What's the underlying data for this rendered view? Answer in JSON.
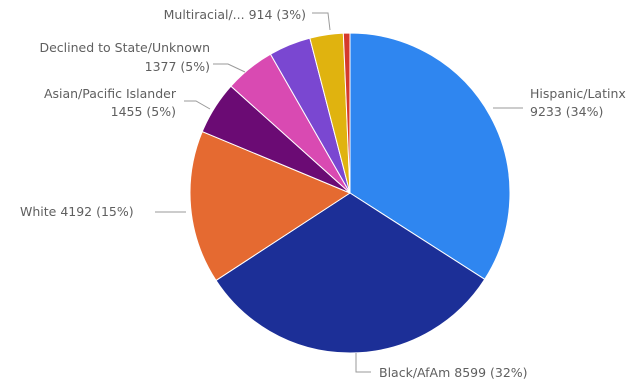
{
  "chart_data": {
    "type": "pie",
    "start_angle_deg": 0,
    "direction": "clockwise",
    "legend": "none",
    "slices": [
      {
        "name": "Hispanic/Latinx",
        "value": 9233,
        "percent_label": "34%",
        "color": "#2f86f0",
        "label_lines": [
          "Hispanic/Latinx",
          "9233 (34%)"
        ]
      },
      {
        "name": "Black/AfAm",
        "value": 8599,
        "percent_label": "32%",
        "color": "#1c2f97",
        "label_lines": [
          "Black/AfAm 8599 (32%)"
        ]
      },
      {
        "name": "White",
        "value": 4192,
        "percent_label": "15%",
        "color": "#e56a31",
        "label_lines": [
          "White 4192 (15%)"
        ]
      },
      {
        "name": "Asian/Pacific Islander",
        "value": 1455,
        "percent_label": "5%",
        "color": "#6b0b74",
        "label_lines": [
          "Asian/Pacific Islander",
          "1455 (5%)"
        ]
      },
      {
        "name": "Declined to State/Unknown",
        "value": 1377,
        "percent_label": "5%",
        "color": "#d94ab2",
        "label_lines": [
          "Declined to State/Unknown",
          "1377 (5%)"
        ]
      },
      {
        "name": "",
        "value": 1150,
        "percent_label": "",
        "color": "#7a47d1",
        "label_lines": []
      },
      {
        "name": "Multiracial/...",
        "value": 914,
        "percent_label": "3%",
        "color": "#e0b30f",
        "label_lines": [
          "Multiracial/... 914 (3%)"
        ]
      },
      {
        "name": "",
        "value": 180,
        "percent_label": "",
        "color": "#d53a2c",
        "label_lines": []
      }
    ]
  }
}
